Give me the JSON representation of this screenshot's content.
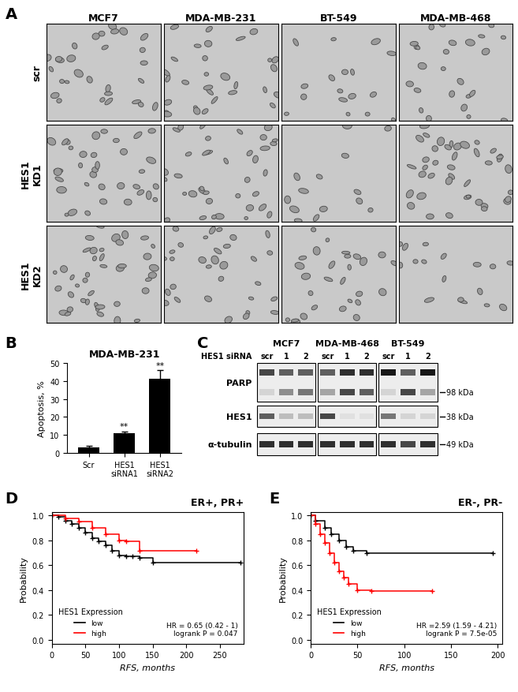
{
  "figure": {
    "A": {
      "panel": "A",
      "type": "image_grid",
      "columns": [
        "MCF7",
        "MDA-MB-231",
        "BT-549",
        "MDA-MB-468"
      ],
      "rows": [
        "scr",
        "HES1\nKD1",
        "HES1\nKD2"
      ]
    },
    "C": {
      "panel": "C",
      "type": "western_blot",
      "lane_header": "HES1 siRNA",
      "lanes": [
        "scr",
        "1",
        "2"
      ],
      "rows": [
        "PARP",
        "HES1",
        "α-tubulin"
      ],
      "markers": {
        "PARP": "98 kDa",
        "HES1": "38 kDa",
        "α-tubulin": "49 kDa"
      },
      "blots": [
        {
          "name": "MCF7",
          "bands": [
            [
              [
                0.7,
                0.1
              ],
              [
                0.6,
                0.4
              ],
              [
                0.6,
                0.5
              ]
            ],
            [
              [
                0.6
              ],
              [
                0.2
              ],
              [
                0.2
              ]
            ],
            [
              [
                0.8
              ],
              [
                0.8
              ],
              [
                0.8
              ]
            ]
          ]
        },
        {
          "name": "MDA-MB-468",
          "bands": [
            [
              [
                0.6,
                0.3
              ],
              [
                0.8,
                0.7
              ],
              [
                0.8,
                0.6
              ]
            ],
            [
              [
                0.7
              ],
              [
                0.05
              ],
              [
                0.05
              ]
            ],
            [
              [
                0.8
              ],
              [
                0.8
              ],
              [
                0.8
              ]
            ]
          ]
        },
        {
          "name": "BT-549",
          "bands": [
            [
              [
                0.9,
                0.1
              ],
              [
                0.6,
                0.7
              ],
              [
                0.9,
                0.3
              ]
            ],
            [
              [
                0.5
              ],
              [
                0.1
              ],
              [
                0.1
              ]
            ],
            [
              [
                0.8
              ],
              [
                0.7
              ],
              [
                0.8
              ]
            ]
          ]
        }
      ]
    }
  },
  "chart_data": [
    {
      "panel": "B",
      "type": "bar",
      "title": "MDA-MB-231",
      "y_label": "Apoptosis, %",
      "categories": [
        "Scr",
        "HES1\nsiRNA1",
        "HES1\nsiRNA2"
      ],
      "values": [
        3,
        11,
        41
      ],
      "error": [
        1,
        1,
        5
      ],
      "annotations": [
        null,
        "**",
        "**"
      ],
      "color": "#000000",
      "ylim": [
        0,
        50
      ],
      "yticks": [
        0,
        10,
        20,
        30,
        40,
        50
      ]
    },
    {
      "panel": "D",
      "type": "step",
      "title": "ER+, PR+",
      "x_label": "RFS, months",
      "y_label": "Probability",
      "legend_title": "HES1 Expression",
      "legend": "lower left",
      "annotation": "HR = 0.65 (0.42 - 1)\nlogrank P = 0.047",
      "xlim": [
        0,
        285
      ],
      "xticks": [
        0,
        50,
        100,
        150,
        200,
        250
      ],
      "ylim": [
        -0.03,
        1.03
      ],
      "yticks": [
        {
          "value": 0,
          "label": "0.0"
        },
        0.2,
        0.4,
        0.6,
        0.8,
        {
          "value": 1,
          "label": "1.0"
        }
      ],
      "series": [
        {
          "name": "low",
          "color": "#000000",
          "marker": "+",
          "x": [
            0,
            10,
            20,
            30,
            40,
            50,
            60,
            70,
            80,
            90,
            100,
            110,
            120,
            130,
            150,
            280
          ],
          "values": [
            1,
            0.99,
            0.96,
            0.93,
            0.9,
            0.86,
            0.82,
            0.79,
            0.76,
            0.72,
            0.68,
            0.67,
            0.67,
            0.66,
            0.62,
            0.62
          ]
        },
        {
          "name": "high",
          "color": "#ff0000",
          "marker": "+",
          "x": [
            0,
            20,
            40,
            60,
            80,
            100,
            110,
            130,
            215
          ],
          "values": [
            1,
            0.98,
            0.95,
            0.9,
            0.85,
            0.8,
            0.79,
            0.72,
            0.72
          ]
        }
      ]
    },
    {
      "panel": "E",
      "type": "step",
      "title": "ER-, PR-",
      "x_label": "RFS, months",
      "y_label": "Probability",
      "legend_title": "HES1 Expression",
      "legend": "lower left",
      "annotation": "HR =2.59 (1.59 - 4.21)\nlogrank P = 7.5e-05",
      "xlim": [
        0,
        205
      ],
      "xticks": [
        0,
        50,
        100,
        150,
        200
      ],
      "ylim": [
        -0.03,
        1.03
      ],
      "yticks": [
        {
          "value": 0,
          "label": "0.0"
        },
        0.2,
        0.4,
        0.6,
        0.8,
        {
          "value": 1,
          "label": "1.0"
        }
      ],
      "series": [
        {
          "name": "low",
          "color": "#000000",
          "marker": "+",
          "x": [
            0,
            5,
            15,
            22,
            30,
            38,
            45,
            60,
            195
          ],
          "values": [
            1,
            0.96,
            0.9,
            0.85,
            0.8,
            0.75,
            0.72,
            0.7,
            0.7
          ]
        },
        {
          "name": "high",
          "color": "#ff0000",
          "marker": "+",
          "x": [
            0,
            5,
            10,
            15,
            20,
            25,
            30,
            35,
            40,
            50,
            65,
            130
          ],
          "values": [
            1,
            0.93,
            0.85,
            0.78,
            0.7,
            0.62,
            0.55,
            0.5,
            0.45,
            0.4,
            0.39,
            0.39
          ]
        }
      ]
    }
  ]
}
